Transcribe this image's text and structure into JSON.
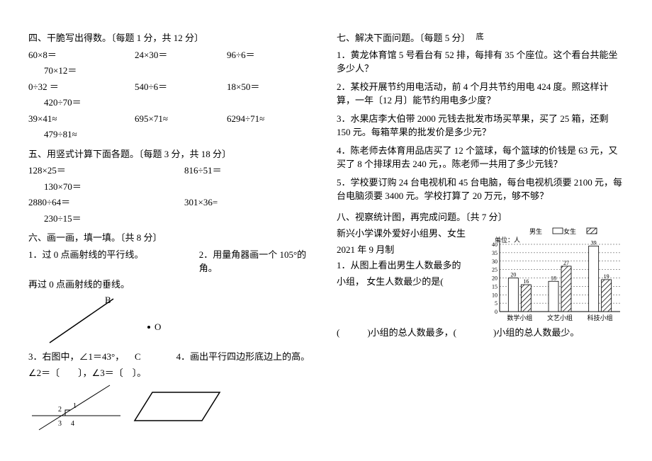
{
  "s4": {
    "title": "四、干脆写出得数。〔每题 1 分，共 12 分〕",
    "rows": [
      {
        "a": "60×8＝",
        "b": "24×30＝",
        "c": "96÷6＝",
        "sub": "70×12＝"
      },
      {
        "a": "0÷32 ＝",
        "b": "540÷6＝",
        "c": "18×50＝",
        "sub": "420÷70＝"
      },
      {
        "a": "39×41≈",
        "b": "695×71≈",
        "c": "6294÷71≈",
        "sub": "479÷81≈"
      }
    ]
  },
  "s5": {
    "title": "五、用竖式计算下面各题。〔每题 3 分，共 18 分〕",
    "rows": [
      {
        "a": "128×25＝",
        "b": "816÷51＝",
        "sub": "130×70＝"
      },
      {
        "a": "2880÷64＝",
        "b": "301×36=",
        "sub": "230÷15＝"
      }
    ]
  },
  "s6": {
    "title": "六、画一画，填一填。〔共 8 分〕",
    "q1a": "1．过 0 点画射线的平行线。",
    "q1b": "2．用量角器画一个 105°的角。",
    "q1c": "再过 0 点画射线的垂线。",
    "labelB": "B",
    "labelO": "O",
    "labelC": "C",
    "q3": "3．右图中，∠1＝43°，",
    "q3b": "4．画出平行四边形底边上的高。",
    "fill": "∠2＝〔　　〕，∠3＝〔　〕。"
  },
  "s7": {
    "title": "七、解决下面问题。〔每题 5 分〕",
    "suffix": "底",
    "q1": "1．黄龙体育馆 5 号看台有 52 排，每排有 35 个座位。这个看台共能坐多少人？",
    "q2": "2．某校开展节约用电活动，前 4 个月共节约用电 424 度。照这样计算，一年〔12 月〕能节约用电多少度？",
    "q3": "3．水果店李大伯带 2000 元钱去批发市场买苹果，买了 25 箱，还剩 150 元。每箱苹果的批发价是多少元？",
    "q4": "4．陈老师去体育用品店买了 12 个篮球，每个篮球的价钱是 63 元，又买了 8 个排球用去 240 元，。陈老师一共用了多少元钱？",
    "q5": "5．学校要订购 24 台电视机和 45 台电脑，每台电视机须要 2100 元，每台电脑须要 3400 元。学校打算了 20 万元，够不够？"
  },
  "s8": {
    "title": "八、视察统计图，再完成问题。〔共 7 分〕",
    "line1": "新兴小学课外爱好小组男、女生",
    "line2": "2021 年 9 月制",
    "q1a": "1．从图上看出男生人数最多的",
    "q1b": "小组， 女生人数最少的是(",
    "q2": "(　　　)小组的总人数最多，(　　　　)小组的总人数最少。",
    "chart": {
      "legend_boy": "男生",
      "legend_girl": "女生",
      "unit": "单位：人",
      "yticks": [
        0,
        5,
        10,
        15,
        20,
        25,
        30,
        35,
        40
      ],
      "categories": [
        "数学小组",
        "文艺小组",
        "科技小组"
      ],
      "boys": [
        20,
        18,
        39
      ],
      "girls": [
        16,
        27,
        19
      ],
      "bar_boy_fill": "#ffffff",
      "bar_girl_fill": "hatch",
      "axis_color": "#000000",
      "label_font": 10
    }
  }
}
